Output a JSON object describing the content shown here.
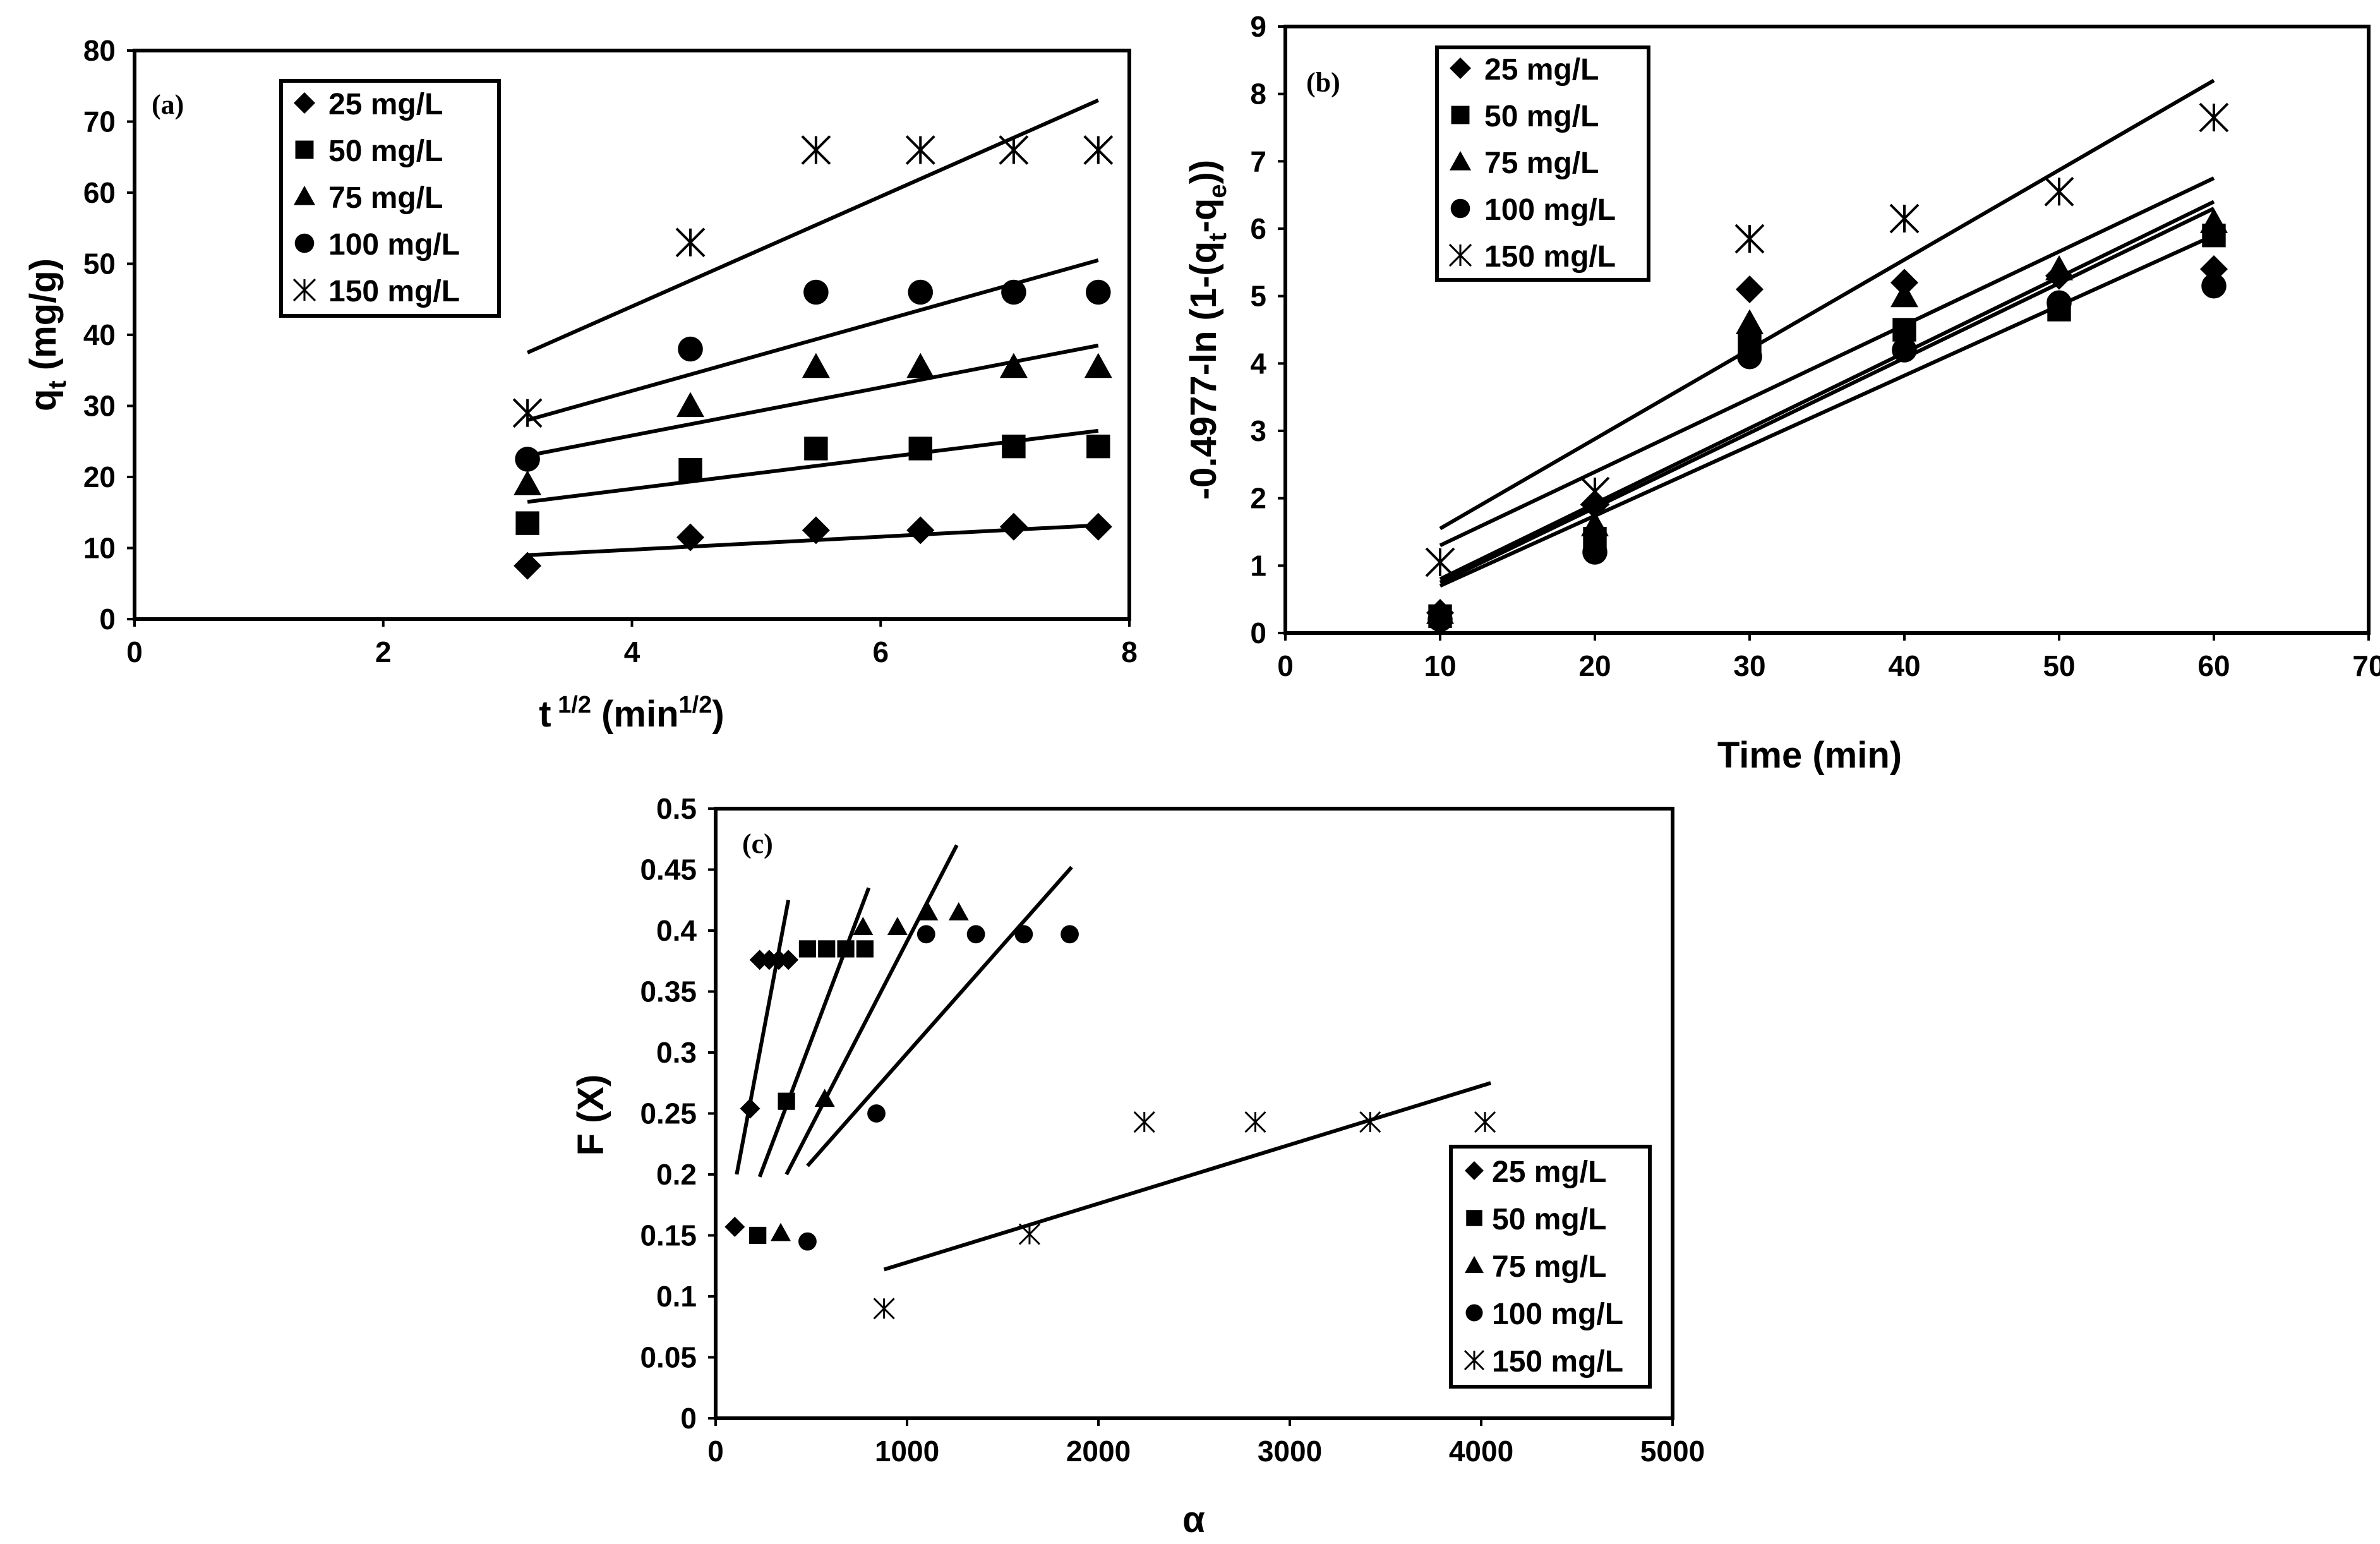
{
  "chart_data": [
    {
      "id": "a",
      "type": "scatter",
      "panel_label": "(a)",
      "xlabel_main": "t",
      "xlabel_sup1": " 1/2",
      "xlabel_mid": " (min",
      "xlabel_sup2": "1/2",
      "xlabel_end": ")",
      "ylabel_main": "q",
      "ylabel_sub": "t",
      "ylabel_end": " (mg/g)",
      "xlim": [
        0,
        8
      ],
      "ylim": [
        0,
        80
      ],
      "xticks": [
        "0",
        "2",
        "4",
        "6",
        "8"
      ],
      "yticks": [
        "0",
        "10",
        "20",
        "30",
        "40",
        "50",
        "60",
        "70",
        "80"
      ],
      "legend": [
        "25 mg/L",
        "50 mg/L",
        "75 mg/L",
        "100 mg/L",
        "150 mg/L"
      ],
      "legend_position": "top-left",
      "series": [
        {
          "name": "25 mg/L",
          "marker": "diamond",
          "x": [
            3.16,
            4.47,
            5.48,
            6.32,
            7.07,
            7.75
          ],
          "y": [
            7.5,
            11.5,
            12.5,
            12.5,
            13,
            13
          ],
          "fit": [
            [
              3.16,
              9
            ],
            [
              7.75,
              13.2
            ]
          ]
        },
        {
          "name": "50 mg/L",
          "marker": "square",
          "x": [
            3.16,
            4.47,
            5.48,
            6.32,
            7.07,
            7.75
          ],
          "y": [
            13.5,
            21,
            24,
            24,
            24.3,
            24.3
          ],
          "fit": [
            [
              3.16,
              16.5
            ],
            [
              7.75,
              26.5
            ]
          ]
        },
        {
          "name": "75 mg/L",
          "marker": "triangle",
          "x": [
            3.16,
            4.47,
            5.48,
            6.32,
            7.07,
            7.75
          ],
          "y": [
            19,
            30,
            35.5,
            35.5,
            35.5,
            35.5
          ],
          "fit": [
            [
              3.16,
              23
            ],
            [
              7.75,
              38.5
            ]
          ]
        },
        {
          "name": "100 mg/L",
          "marker": "circle",
          "x": [
            3.16,
            4.47,
            5.48,
            6.32,
            7.07,
            7.75
          ],
          "y": [
            22.5,
            38,
            46,
            46,
            46,
            46
          ],
          "fit": [
            [
              3.16,
              28
            ],
            [
              7.75,
              50.5
            ]
          ]
        },
        {
          "name": "150 mg/L",
          "marker": "asterisk",
          "x": [
            3.16,
            4.47,
            5.48,
            6.32,
            7.07,
            7.75
          ],
          "y": [
            29,
            53,
            66,
            66,
            66,
            66
          ],
          "fit": [
            [
              3.16,
              37.5
            ],
            [
              7.75,
              73
            ]
          ]
        }
      ]
    },
    {
      "id": "b",
      "type": "scatter",
      "panel_label": "(b)",
      "xlabel_main": "Time (min)",
      "ylabel_main": "-0.4977-ln (1-(q",
      "ylabel_sub": "t",
      "ylabel_mid": "-q",
      "ylabel_sub2": "e",
      "ylabel_end": "))",
      "xlim": [
        0,
        70
      ],
      "ylim": [
        0,
        9
      ],
      "xticks": [
        "0",
        "10",
        "20",
        "30",
        "40",
        "50",
        "60",
        "70"
      ],
      "yticks": [
        "0",
        "1",
        "2",
        "3",
        "4",
        "5",
        "6",
        "7",
        "8",
        "9"
      ],
      "legend": [
        "25 mg/L",
        "50 mg/L",
        "75 mg/L",
        "100 mg/L",
        "150 mg/L"
      ],
      "legend_position": "top-left",
      "series": [
        {
          "name": "25 mg/L",
          "marker": "diamond",
          "x": [
            10,
            20,
            30,
            40,
            50,
            60
          ],
          "y": [
            0.3,
            1.9,
            5.1,
            5.2,
            5.3,
            5.4
          ],
          "fit": [
            [
              10,
              0.8
            ],
            [
              60,
              6.4
            ]
          ]
        },
        {
          "name": "50 mg/L",
          "marker": "square",
          "x": [
            10,
            20,
            30,
            40,
            50,
            60
          ],
          "y": [
            0.25,
            1.4,
            4.3,
            4.5,
            4.8,
            5.9
          ],
          "fit": [
            [
              10,
              0.7
            ],
            [
              60,
              5.9
            ]
          ]
        },
        {
          "name": "75 mg/L",
          "marker": "triangle",
          "x": [
            10,
            20,
            30,
            40,
            50,
            60
          ],
          "y": [
            0.3,
            1.6,
            4.6,
            5.0,
            5.4,
            6.1
          ],
          "fit": [
            [
              10,
              0.75
            ],
            [
              60,
              6.3
            ]
          ]
        },
        {
          "name": "100 mg/L",
          "marker": "circle",
          "x": [
            10,
            20,
            30,
            40,
            50,
            60
          ],
          "y": [
            0.2,
            1.2,
            4.1,
            4.2,
            4.9,
            5.15
          ],
          "fit": [
            [
              10,
              1.3
            ],
            [
              60,
              6.75
            ]
          ]
        },
        {
          "name": "150 mg/L",
          "marker": "asterisk",
          "x": [
            10,
            20,
            30,
            40,
            50,
            60
          ],
          "y": [
            1.05,
            2.1,
            5.85,
            6.15,
            6.55,
            7.65
          ],
          "fit": [
            [
              10,
              1.55
            ],
            [
              60,
              8.2
            ]
          ]
        }
      ]
    },
    {
      "id": "c",
      "type": "scatter",
      "panel_label": "(c)",
      "xlabel_main": "α",
      "ylabel_main": "F (X)",
      "xlim": [
        0,
        5000
      ],
      "ylim": [
        0,
        0.5
      ],
      "xticks": [
        "0",
        "1000",
        "2000",
        "3000",
        "4000",
        "5000"
      ],
      "yticks": [
        "0",
        "0.05",
        "0.1",
        "0.15",
        "0.2",
        "0.25",
        "0.3",
        "0.35",
        "0.4",
        "0.45",
        "0.5"
      ],
      "legend": [
        "25 mg/L",
        "50 mg/L",
        "75 mg/L",
        "100 mg/L",
        "150 mg/L"
      ],
      "legend_position": "bottom-right",
      "series": [
        {
          "name": "25 mg/L",
          "marker": "diamond",
          "x": [
            100,
            180,
            230,
            280,
            330,
            380
          ],
          "y": [
            0.157,
            0.254,
            0.376,
            0.376,
            0.376,
            0.376
          ],
          "fit": [
            [
              110,
              0.2
            ],
            [
              380,
              0.425
            ]
          ]
        },
        {
          "name": "50 mg/L",
          "marker": "square",
          "x": [
            220,
            370,
            480,
            580,
            680,
            780
          ],
          "y": [
            0.15,
            0.26,
            0.385,
            0.385,
            0.385,
            0.385
          ],
          "fit": [
            [
              230,
              0.198
            ],
            [
              800,
              0.435
            ]
          ]
        },
        {
          "name": "75 mg/L",
          "marker": "triangle",
          "x": [
            340,
            570,
            770,
            950,
            1110,
            1270
          ],
          "y": [
            0.152,
            0.262,
            0.403,
            0.403,
            0.415,
            0.415
          ],
          "fit": [
            [
              370,
              0.2
            ],
            [
              1260,
              0.47
            ]
          ]
        },
        {
          "name": "100 mg/L",
          "marker": "circle",
          "x": [
            480,
            840,
            1100,
            1360,
            1610,
            1850
          ],
          "y": [
            0.145,
            0.25,
            0.397,
            0.397,
            0.397,
            0.397
          ],
          "fit": [
            [
              480,
              0.207
            ],
            [
              1860,
              0.452
            ]
          ]
        },
        {
          "name": "150 mg/L",
          "marker": "asterisk",
          "x": [
            880,
            1640,
            2240,
            2820,
            3420,
            4020
          ],
          "y": [
            0.09,
            0.151,
            0.243,
            0.243,
            0.243,
            0.243
          ],
          "fit": [
            [
              880,
              0.122
            ],
            [
              4050,
              0.275
            ]
          ]
        }
      ]
    }
  ]
}
